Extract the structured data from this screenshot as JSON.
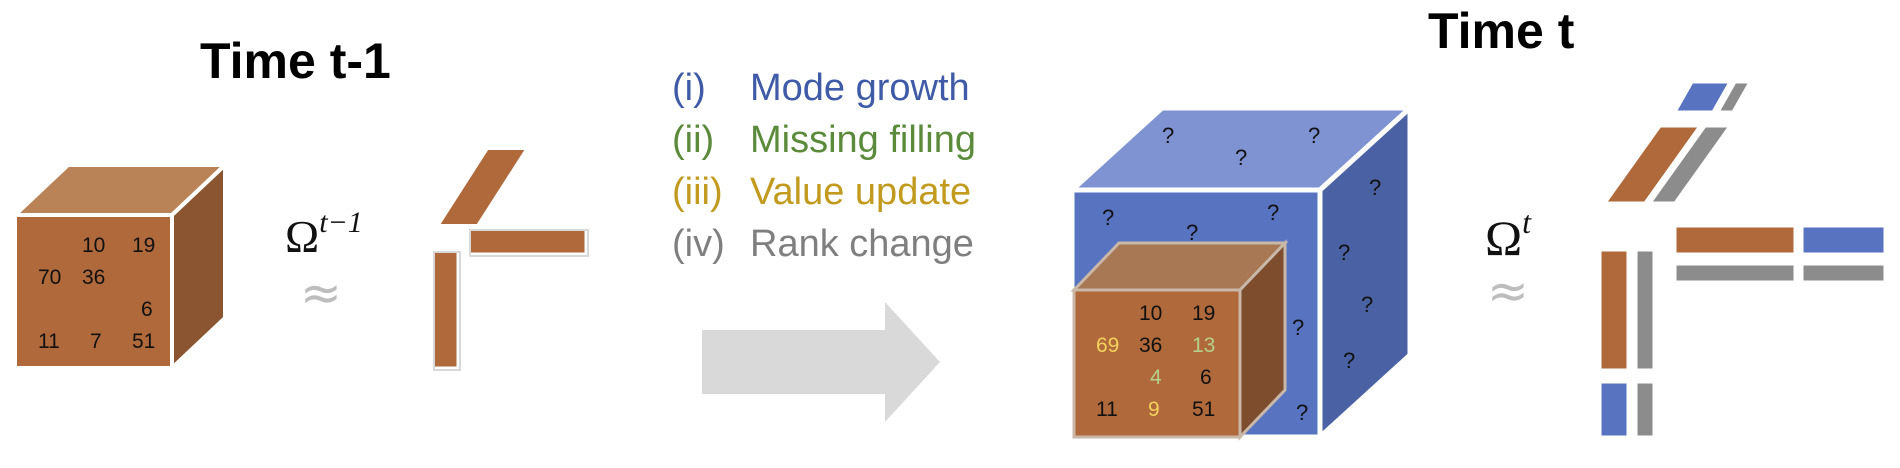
{
  "titles": {
    "left": "Time t-1",
    "right": "Time t"
  },
  "factorization": {
    "left_symbol": "Ω",
    "left_superscript": "t−1",
    "right_symbol": "Ω",
    "right_superscript": "t",
    "approx": "≈"
  },
  "legend": [
    {
      "num": "(i)",
      "label": "Mode growth",
      "color": "#3f5aa6"
    },
    {
      "num": "(ii)",
      "label": "Missing filling",
      "color": "#5b8a3a"
    },
    {
      "num": "(iii)",
      "label": "Value update",
      "color": "#c29a1e"
    },
    {
      "num": "(iv)",
      "label": "Rank change",
      "color": "#7f7f7f"
    }
  ],
  "colors": {
    "tensor_brown": "#b0693a",
    "tensor_blue": "#5873c0",
    "factor_gray": "#8c8c8c",
    "arrow": "#d9d9d9",
    "filled_value": "#b5d08a",
    "updated_value": "#f2d25c"
  },
  "left_tensor": {
    "cells": [
      "10",
      "19",
      "70",
      "36",
      "6",
      "11",
      "7",
      "51"
    ]
  },
  "right_tensor": {
    "cells": [
      "10",
      "19",
      "69",
      "36",
      "13",
      "4",
      "6",
      "11",
      "9",
      "51"
    ],
    "missing_mark": "?"
  }
}
